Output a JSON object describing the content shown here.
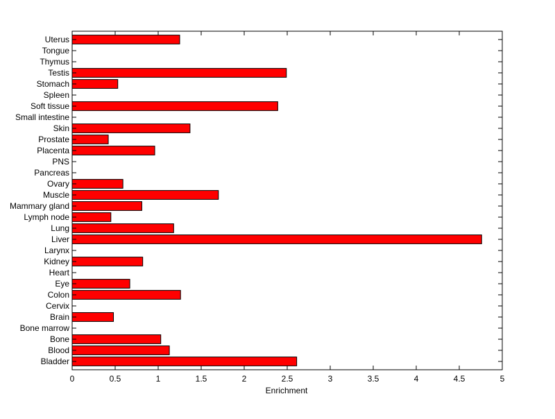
{
  "chart_data": {
    "type": "bar",
    "orientation": "horizontal",
    "xlabel": "Enrichment",
    "ylabel": "",
    "title": "",
    "xlim": [
      0,
      5
    ],
    "xticks": [
      "0",
      "0.5",
      "1",
      "1.5",
      "2",
      "2.5",
      "3",
      "3.5",
      "4",
      "4.5",
      "5"
    ],
    "categories": [
      "Bladder",
      "Blood",
      "Bone",
      "Bone marrow",
      "Brain",
      "Cervix",
      "Colon",
      "Eye",
      "Heart",
      "Kidney",
      "Larynx",
      "Liver",
      "Lung",
      "Lymph node",
      "Mammary gland",
      "Muscle",
      "Ovary",
      "Pancreas",
      "PNS",
      "Placenta",
      "Prostate",
      "Skin",
      "Small intestine",
      "Soft tissue",
      "Spleen",
      "Stomach",
      "Testis",
      "Thymus",
      "Tongue",
      "Uterus"
    ],
    "values": [
      2.61,
      1.13,
      1.03,
      0,
      0.48,
      0,
      1.26,
      0.67,
      0,
      0.82,
      0,
      4.76,
      1.18,
      0.45,
      0.81,
      1.7,
      0.59,
      0,
      0,
      0.96,
      0.42,
      1.37,
      0,
      2.39,
      0,
      0.53,
      2.49,
      0,
      0,
      1.25
    ],
    "bar_color": "#ff0000",
    "grid": false
  }
}
